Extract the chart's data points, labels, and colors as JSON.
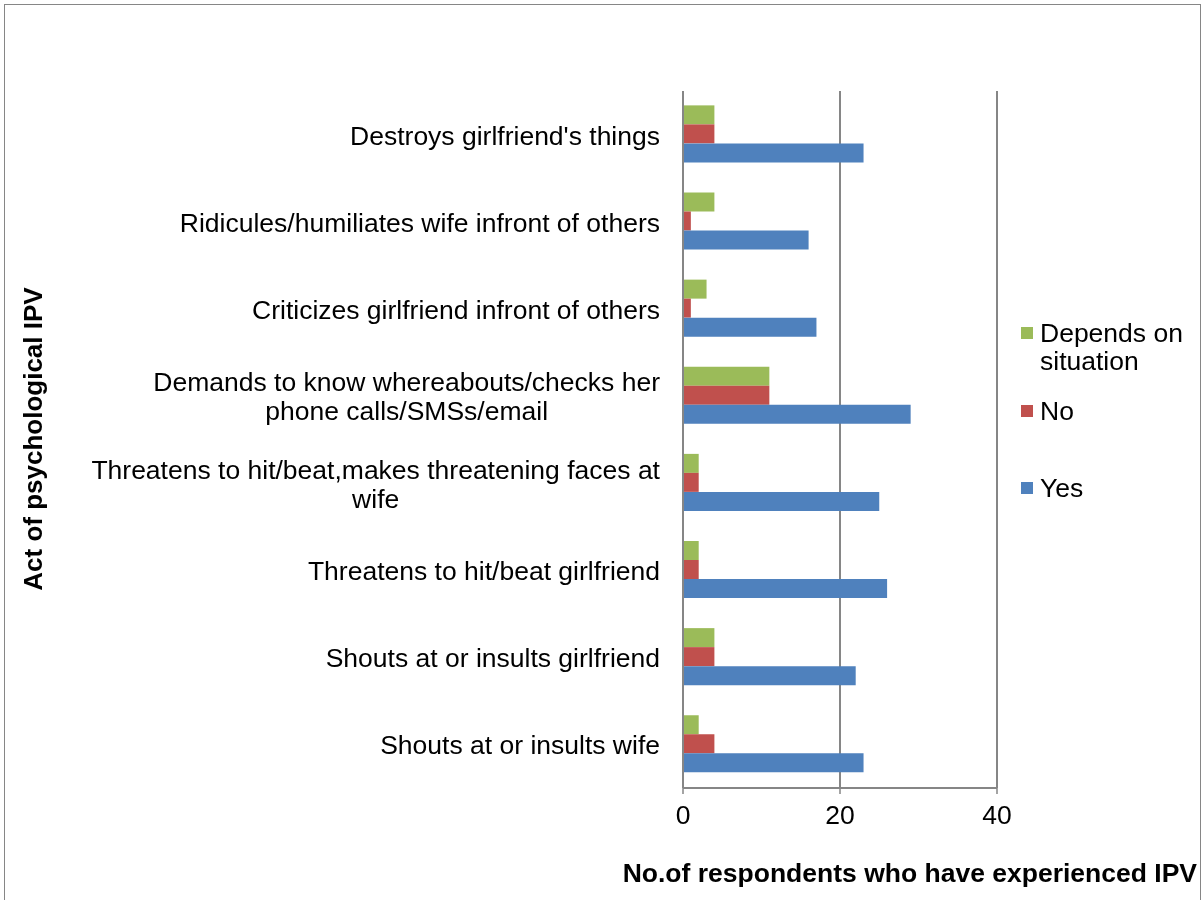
{
  "chart_data": {
    "type": "bar",
    "orientation": "horizontal",
    "xlabel": "No.of respondents who have experienced IPV",
    "ylabel": "Act of psychological IPV",
    "categories": [
      "Destroys girlfriend's things",
      "Ridicules/humiliates wife infront of others",
      "Criticizes girlfriend infront of others",
      "Demands to know whereabouts/checks her phone calls/SMSs/email",
      "Threatens to hit/beat,makes threatening faces at wife",
      "Threatens to hit/beat girlfriend",
      "Shouts at or insults girlfriend",
      "Shouts at or insults wife"
    ],
    "series": [
      {
        "name": "Depends on situation",
        "color": "#9bbb59",
        "values": [
          4,
          4,
          3,
          11,
          2,
          2,
          4,
          2
        ]
      },
      {
        "name": "No",
        "color": "#c0504d",
        "values": [
          4,
          1,
          1,
          11,
          2,
          2,
          4,
          4
        ]
      },
      {
        "name": "Yes",
        "color": "#4f81bd",
        "values": [
          23,
          16,
          17,
          29,
          25,
          26,
          22,
          23
        ]
      }
    ],
    "xlim": [
      0,
      40
    ],
    "xticks": [
      0,
      20,
      40
    ],
    "grid": "x",
    "legend": "right"
  }
}
